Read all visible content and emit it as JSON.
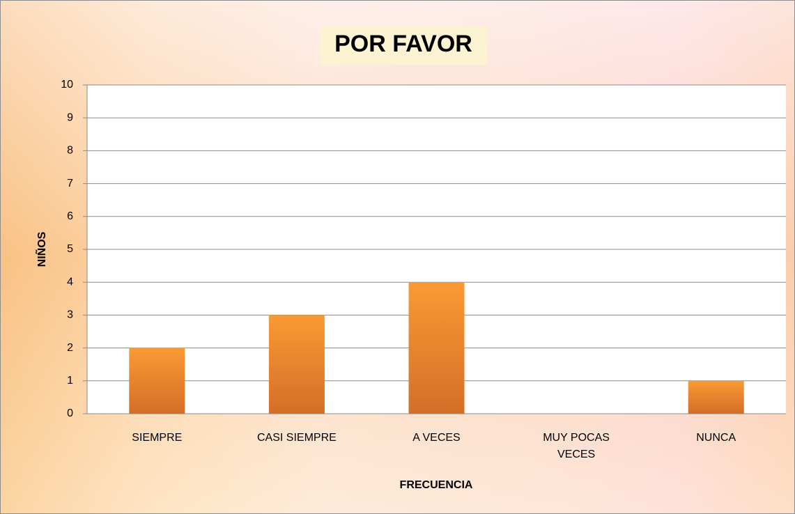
{
  "chart_data": {
    "type": "bar",
    "title": "POR FAVOR",
    "x_label": "FRECUENCIA",
    "y_label": "NIÑOS",
    "categories": [
      "SIEMPRE",
      "CASI SIEMPRE",
      "A VECES",
      "MUY POCAS VECES",
      "NUNCA"
    ],
    "values": [
      2,
      3,
      4,
      0,
      1
    ],
    "color": "#f28a2a",
    "ylim": [
      0,
      10
    ],
    "yticks": [
      0,
      1,
      2,
      3,
      4,
      5,
      6,
      7,
      8,
      9,
      10
    ],
    "grid": true
  }
}
